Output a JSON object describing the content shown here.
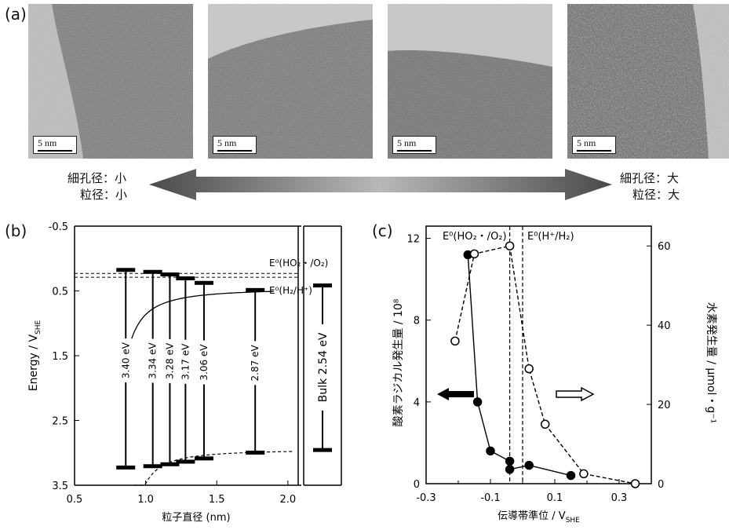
{
  "panel_a": {
    "label": "(a)",
    "scale_bars": [
      "5 nm",
      "5 nm",
      "5 nm",
      "5 nm"
    ],
    "left_text": {
      "pore": "細孔径：小",
      "particle": "粒径：小"
    },
    "right_text": {
      "pore": "細孔径：大",
      "particle": "粒径：大"
    }
  },
  "panel_b": {
    "label": "(b)",
    "ylabel_main": "Energy / V",
    "ylabel_sub": "SHE",
    "xlabel": "粒子直径 (nm)",
    "xticks": [
      "0.5",
      "1.0",
      "1.5",
      "2.0"
    ],
    "yticks": [
      "-0.5",
      "0.5",
      "1.5",
      "2.5",
      "3.5"
    ],
    "ref_ho2": "E⁰(HO₂・/O₂)",
    "ref_h2": "E⁰(H₂/H⁺)",
    "bulk_label": "Bulk  2.54 eV",
    "gaps": [
      "3.40 eV",
      "3.34 eV",
      "3.28 eV",
      "3.17 eV",
      "3.06 eV",
      "2.87 eV"
    ]
  },
  "panel_c": {
    "label": "(c)",
    "ylabel_left": "酸素ラジカル発生量 / 10⁸",
    "ylabel_right": "水素発生量 / μmol・g⁻¹",
    "xlabel_main": "伝導帯準位 / V",
    "xlabel_sub": "SHE",
    "xticks": [
      "-0.3",
      "-0.1",
      "0.1",
      "0.3"
    ],
    "yticks_left": [
      "0",
      "4",
      "8",
      "12"
    ],
    "yticks_right": [
      "0",
      "20",
      "40",
      "60"
    ],
    "ref_ho2": "E⁰(HO₂・/O₂)",
    "ref_h": "E⁰(H⁺/H₂)"
  },
  "chart_data": [
    {
      "type": "scatter",
      "panel": "b",
      "xlabel": "粒子直径 (nm)",
      "ylabel": "Energy / VSHE",
      "xlim": [
        0.5,
        2.1
      ],
      "ylim": [
        3.5,
        -0.5
      ],
      "conduction_band": [
        [
          0.86,
          0.17
        ],
        [
          1.05,
          0.2
        ],
        [
          1.17,
          0.24
        ],
        [
          1.28,
          0.3
        ],
        [
          1.41,
          0.37
        ],
        [
          1.77,
          0.48
        ]
      ],
      "valence_band": [
        [
          0.86,
          3.22
        ],
        [
          1.05,
          3.2
        ],
        [
          1.17,
          3.17
        ],
        [
          1.28,
          3.13
        ],
        [
          1.41,
          3.08
        ],
        [
          1.77,
          2.99
        ]
      ],
      "band_gaps": [
        3.4,
        3.34,
        3.28,
        3.17,
        3.06,
        2.87
      ],
      "bulk": {
        "cb": 0.41,
        "vb": 2.95,
        "gap": 2.54
      },
      "reference_lines": [
        {
          "name": "E0(HO2・/O2)",
          "y": 0.23
        },
        {
          "name": "E0(H2/H+)",
          "y": 0.29
        }
      ]
    },
    {
      "type": "line",
      "panel": "c",
      "xlabel": "伝導帯準位 / VSHE",
      "xlim": [
        -0.3,
        0.4
      ],
      "ylim_left": [
        0,
        12
      ],
      "ylim_right": [
        0,
        65
      ],
      "series": [
        {
          "name": "酸素ラジカル発生量",
          "axis": "left",
          "marker": "filled",
          "x": [
            -0.17,
            -0.14,
            -0.1,
            -0.04,
            -0.04,
            0.02,
            0.15
          ],
          "y": [
            11.2,
            4.0,
            1.6,
            1.1,
            0.7,
            0.9,
            0.4
          ]
        },
        {
          "name": "水素発生量",
          "axis": "right",
          "marker": "open",
          "x": [
            -0.21,
            -0.15,
            -0.04,
            0.02,
            0.07,
            0.19,
            0.35
          ],
          "y": [
            36,
            58,
            60,
            29,
            15,
            2.5,
            0
          ]
        }
      ],
      "reference_lines": [
        {
          "name": "E0(HO2・/O2)",
          "x": -0.04
        },
        {
          "name": "E0(H+/H2)",
          "x": 0.0
        }
      ]
    }
  ]
}
